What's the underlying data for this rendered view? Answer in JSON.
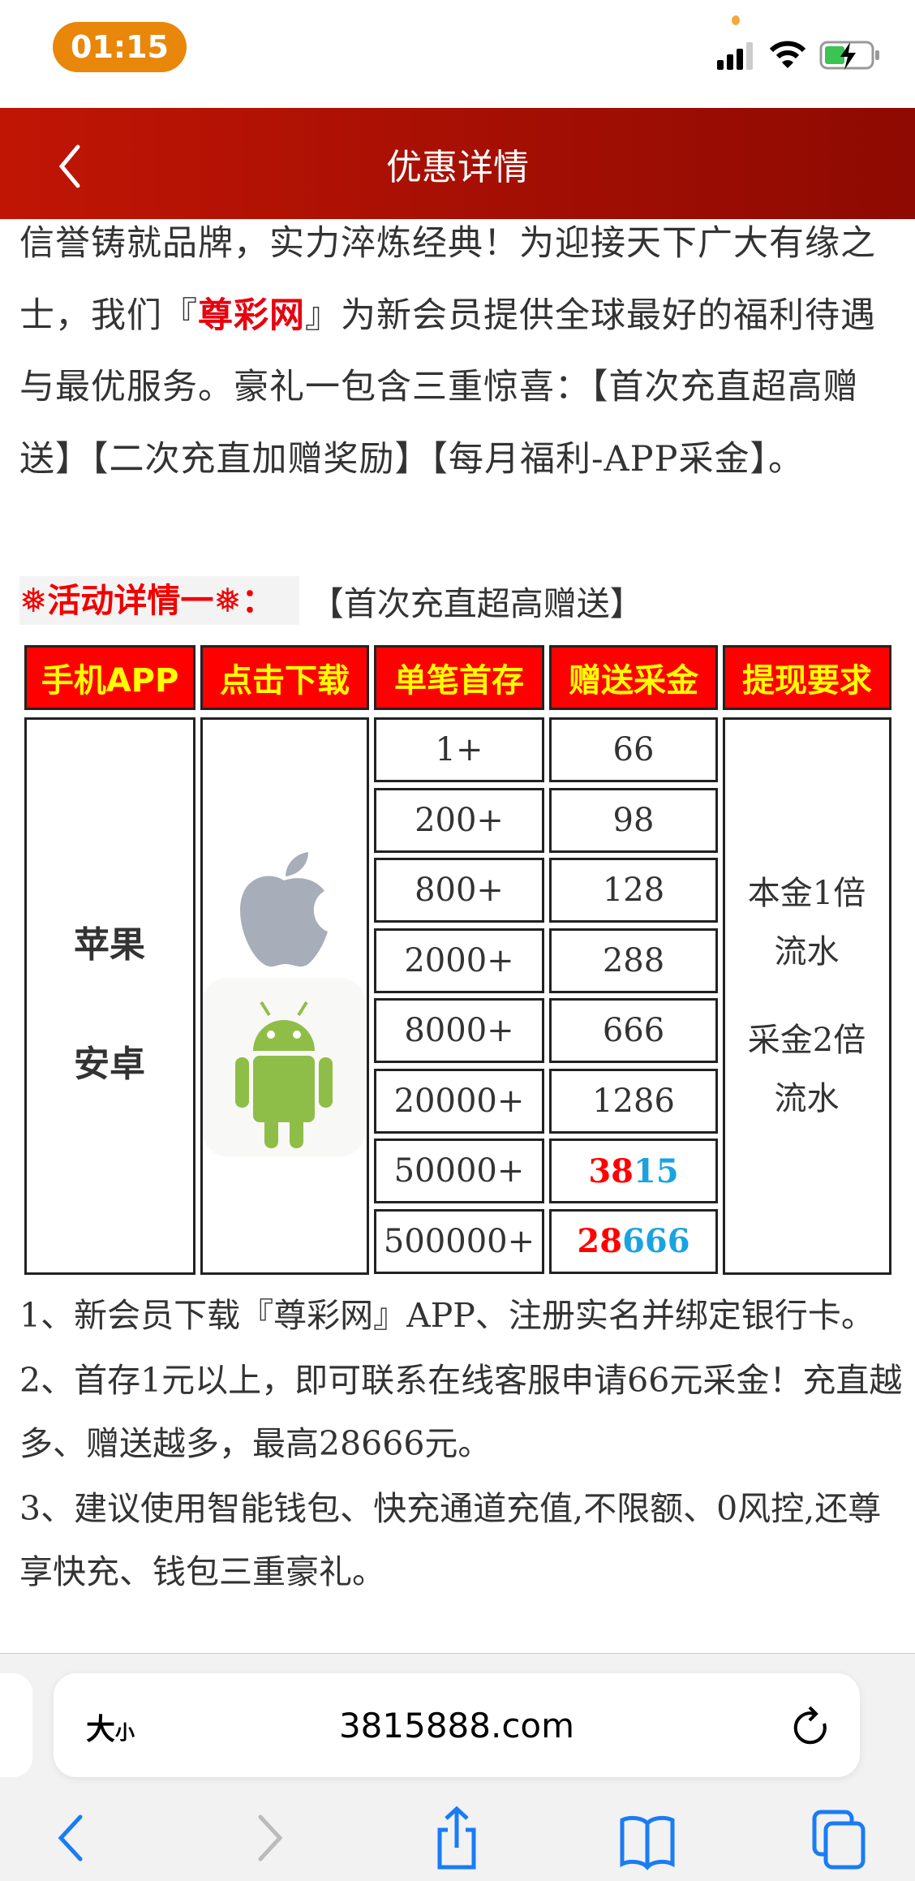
{
  "status_bar": {
    "time": "01:15",
    "icons": [
      "signal-icon",
      "wifi-icon",
      "battery-charging-icon"
    ]
  },
  "header": {
    "title": "优惠详情",
    "back_icon": "chevron-left-icon"
  },
  "intro": {
    "part1": "信誉铸就品牌，实力淬炼经典！为迎接天下广大有缘之士，我们『",
    "brand": "尊彩网",
    "part2": "』为新会员提供全球最好的福利待遇与最优服务。豪礼一包含三重惊喜：【首次充直超高赠送】【二次充直加赠奖励】【每月福利-APP采金】。"
  },
  "activity": {
    "label": "❅活动详情一❅：",
    "subtitle": "【首次充直超高赠送】"
  },
  "table": {
    "headers": [
      "手机APP",
      "点击下载",
      "单笔首存",
      "赠送采金",
      "提现要求"
    ],
    "platforms": [
      "苹果",
      "安卓"
    ],
    "download_icons": [
      "apple-icon",
      "android-icon"
    ],
    "rows": [
      {
        "deposit": "1+",
        "bonus": "66"
      },
      {
        "deposit": "200+",
        "bonus": "98"
      },
      {
        "deposit": "800+",
        "bonus": "128"
      },
      {
        "deposit": "2000+",
        "bonus": "288"
      },
      {
        "deposit": "8000+",
        "bonus": "666"
      },
      {
        "deposit": "20000+",
        "bonus": "1286"
      },
      {
        "deposit": "50000+",
        "bonus_red": "38",
        "bonus_blue": "15"
      },
      {
        "deposit": "500000+",
        "bonus_red": "28",
        "bonus_blue": "666"
      }
    ],
    "requirements": [
      "本金1倍",
      "流水",
      "采金2倍",
      "流水"
    ],
    "colors": {
      "header_bg": "#ff0000",
      "header_text": "#ffff00",
      "highlight_red": "#ff0000",
      "highlight_blue": "#1aa3e0"
    }
  },
  "notes": [
    "1、新会员下载『尊彩网』APP、注册实名并绑定银行卡。",
    "2、首存1元以上，即可联系在线客服申请66元采金！充直越多、赠送越多，最高28666元。",
    "3、建议使用智能钱包、快充通道充值,不限额、0风控,还尊享快充、钱包三重豪礼。"
  ],
  "browser": {
    "text_size_big": "大",
    "text_size_small": "小",
    "url": "3815888.com",
    "toolbar": [
      "back-icon",
      "forward-icon",
      "share-icon",
      "bookmarks-icon",
      "tabs-icon"
    ]
  }
}
